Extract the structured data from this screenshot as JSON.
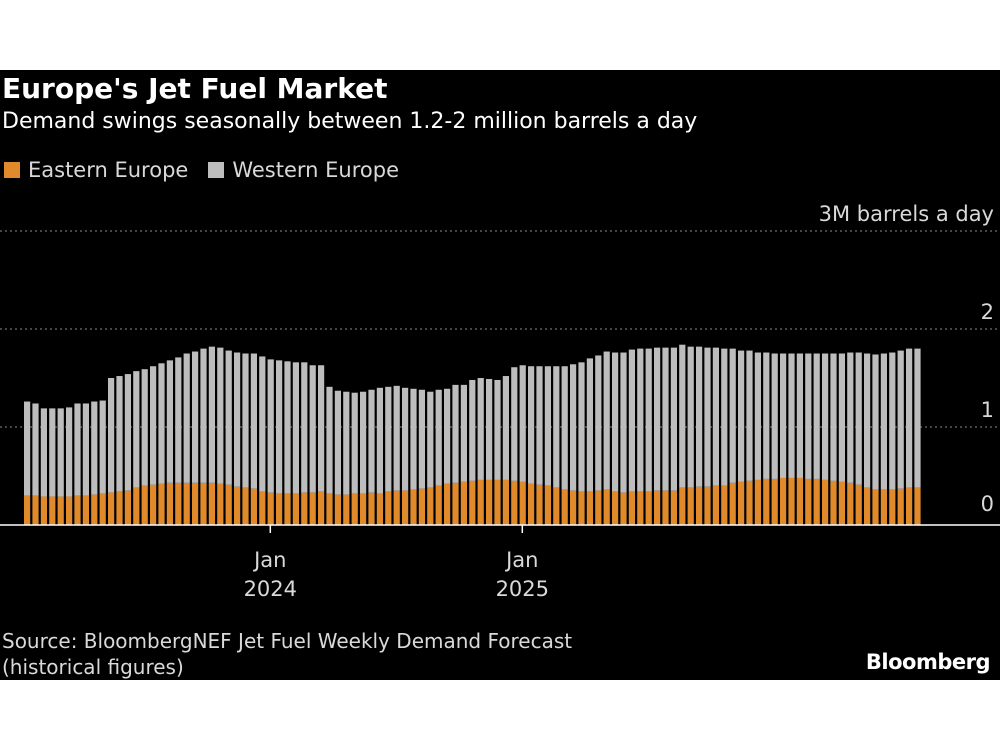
{
  "header": {
    "title": "Europe's Jet Fuel Market",
    "subtitle": "Demand swings seasonally between 1.2-2 million barrels a day"
  },
  "legend": {
    "items": [
      {
        "label": "Eastern Europe",
        "color": "#e08a2c"
      },
      {
        "label": "Western Europe",
        "color": "#bdbdbd"
      }
    ]
  },
  "footer": {
    "source_line1": "Source: BloombergNEF Jet Fuel Weekly Demand Forecast",
    "source_line2": "(historical figures)",
    "brand": "Bloomberg"
  },
  "chart_data": {
    "type": "bar",
    "stacked": true,
    "title": "Europe's Jet Fuel Market",
    "subtitle": "Demand swings seasonally between 1.2-2 million barrels a day",
    "ylabel": "3M barrels a day",
    "ylim": [
      0,
      3
    ],
    "yticks": [
      {
        "value": 0,
        "label": "0"
      },
      {
        "value": 1,
        "label": "1"
      },
      {
        "value": 2,
        "label": "2"
      },
      {
        "value": 3,
        "label": "3M barrels a day"
      }
    ],
    "xticks": [
      {
        "index": 28,
        "month": "Jan",
        "year": "2024"
      },
      {
        "index": 58,
        "month": "Jan",
        "year": "2025"
      }
    ],
    "x_start": "2023-05",
    "x_end": "2025-10",
    "x_unit": "month (weekly sampled bars)",
    "series": [
      {
        "name": "Eastern Europe",
        "color": "#e08a2c",
        "values": [
          0.3,
          0.3,
          0.29,
          0.29,
          0.29,
          0.29,
          0.3,
          0.3,
          0.31,
          0.32,
          0.33,
          0.34,
          0.35,
          0.38,
          0.4,
          0.41,
          0.42,
          0.43,
          0.43,
          0.43,
          0.43,
          0.43,
          0.43,
          0.42,
          0.41,
          0.39,
          0.38,
          0.37,
          0.34,
          0.33,
          0.32,
          0.32,
          0.32,
          0.33,
          0.33,
          0.34,
          0.32,
          0.31,
          0.31,
          0.32,
          0.32,
          0.33,
          0.32,
          0.34,
          0.35,
          0.35,
          0.36,
          0.37,
          0.38,
          0.4,
          0.42,
          0.43,
          0.44,
          0.45,
          0.46,
          0.46,
          0.46,
          0.46,
          0.45,
          0.44,
          0.42,
          0.41,
          0.4,
          0.38,
          0.36,
          0.35,
          0.34,
          0.34,
          0.35,
          0.36,
          0.34,
          0.33,
          0.34,
          0.34,
          0.34,
          0.35,
          0.35,
          0.35,
          0.38,
          0.38,
          0.39,
          0.39,
          0.4,
          0.4,
          0.43,
          0.44,
          0.45,
          0.46,
          0.47,
          0.47,
          0.48,
          0.48,
          0.48,
          0.47,
          0.47,
          0.46,
          0.45,
          0.44,
          0.43,
          0.41,
          0.38,
          0.36,
          0.36,
          0.36,
          0.37,
          0.38,
          0.38
        ]
      },
      {
        "name": "Western Europe",
        "color": "#bdbdbd",
        "values": [
          0.96,
          0.94,
          0.9,
          0.9,
          0.9,
          0.91,
          0.94,
          0.94,
          0.95,
          0.95,
          1.17,
          1.18,
          1.19,
          1.19,
          1.19,
          1.21,
          1.23,
          1.25,
          1.28,
          1.32,
          1.34,
          1.37,
          1.39,
          1.39,
          1.37,
          1.37,
          1.37,
          1.38,
          1.38,
          1.36,
          1.36,
          1.35,
          1.34,
          1.33,
          1.3,
          1.29,
          1.09,
          1.06,
          1.05,
          1.03,
          1.04,
          1.05,
          1.08,
          1.07,
          1.07,
          1.05,
          1.03,
          1.01,
          0.98,
          0.98,
          0.97,
          1.0,
          0.99,
          1.03,
          1.04,
          1.03,
          1.02,
          1.06,
          1.16,
          1.19,
          1.2,
          1.21,
          1.22,
          1.24,
          1.26,
          1.29,
          1.32,
          1.36,
          1.38,
          1.41,
          1.42,
          1.43,
          1.45,
          1.46,
          1.46,
          1.46,
          1.46,
          1.46,
          1.46,
          1.44,
          1.43,
          1.42,
          1.41,
          1.4,
          1.37,
          1.34,
          1.33,
          1.3,
          1.29,
          1.28,
          1.27,
          1.27,
          1.27,
          1.28,
          1.28,
          1.29,
          1.3,
          1.31,
          1.33,
          1.35,
          1.37,
          1.38,
          1.39,
          1.4,
          1.41,
          1.42,
          1.42
        ]
      }
    ]
  }
}
